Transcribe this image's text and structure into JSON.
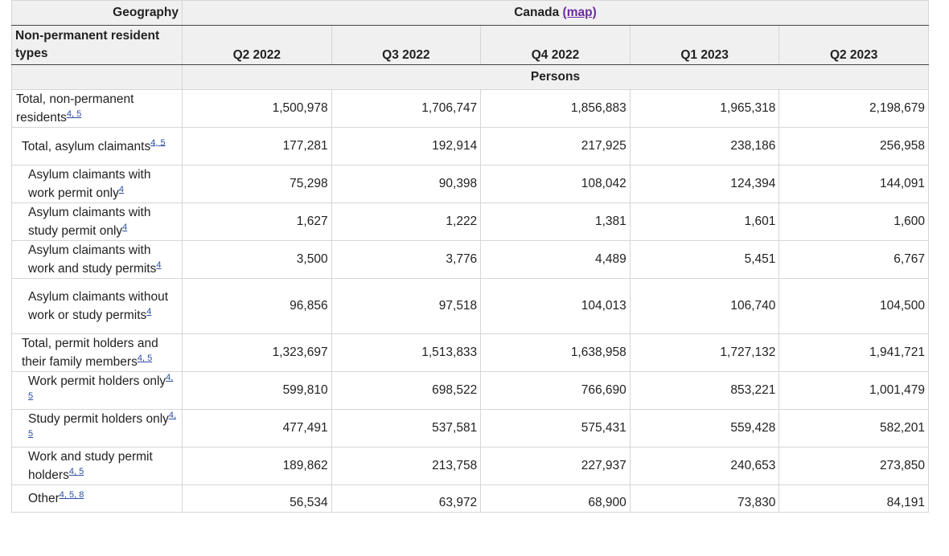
{
  "header": {
    "geography_label": "Geography",
    "geography_value": "Canada",
    "map_link": "(map)",
    "row_label_header": "Non-permanent resident types",
    "units": "Persons",
    "periods": [
      "Q2 2022",
      "Q3 2022",
      "Q4 2022",
      "Q1 2023",
      "Q2 2023"
    ]
  },
  "rows": [
    {
      "label": "Total, non-permanent residents",
      "footnotes": "4, 5",
      "values": [
        "1,500,978",
        "1,706,747",
        "1,856,883",
        "1,965,318",
        "2,198,679"
      ]
    },
    {
      "label": "Total, asylum claimants",
      "footnotes": "4, 5",
      "values": [
        "177,281",
        "192,914",
        "217,925",
        "238,186",
        "256,958"
      ]
    },
    {
      "label": "Asylum claimants with work permit only",
      "footnotes": "4",
      "values": [
        "75,298",
        "90,398",
        "108,042",
        "124,394",
        "144,091"
      ]
    },
    {
      "label": "Asylum claimants with study permit only",
      "footnotes": "4",
      "values": [
        "1,627",
        "1,222",
        "1,381",
        "1,601",
        "1,600"
      ]
    },
    {
      "label": "Asylum claimants with work and study permits",
      "footnotes": "4",
      "values": [
        "3,500",
        "3,776",
        "4,489",
        "5,451",
        "6,767"
      ]
    },
    {
      "label": "Asylum claimants without work or study permits",
      "footnotes": "4",
      "values": [
        "96,856",
        "97,518",
        "104,013",
        "106,740",
        "104,500"
      ]
    },
    {
      "label": "Total, permit holders and their family members",
      "footnotes": "4, 5",
      "values": [
        "1,323,697",
        "1,513,833",
        "1,638,958",
        "1,727,132",
        "1,941,721"
      ]
    },
    {
      "label": "Work permit holders only",
      "footnotes": "4, 5",
      "values": [
        "599,810",
        "698,522",
        "766,690",
        "853,221",
        "1,001,479"
      ]
    },
    {
      "label": "Study permit holders only",
      "footnotes": "4, 5",
      "values": [
        "477,491",
        "537,581",
        "575,431",
        "559,428",
        "582,201"
      ]
    },
    {
      "label": "Work and study permit holders",
      "footnotes": "4, 5",
      "values": [
        "189,862",
        "213,758",
        "227,937",
        "240,653",
        "273,850"
      ]
    },
    {
      "label": "Other",
      "footnotes": "4, 5, 8",
      "values": [
        "56,534",
        "63,972",
        "68,900",
        "73,830",
        "84,191"
      ]
    }
  ]
}
